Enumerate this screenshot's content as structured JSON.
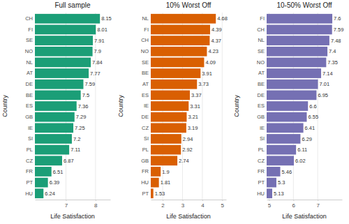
{
  "chart_data": [
    {
      "type": "bar",
      "orientation": "horizontal",
      "title": "Full sample",
      "x_label": "Life Satisfaction",
      "y_label": "Country",
      "categories": [
        "CH",
        "FI",
        "SE",
        "NO",
        "NL",
        "AT",
        "DE",
        "BE",
        "ES",
        "GB",
        "IE",
        "SI",
        "PL",
        "CZ",
        "FR",
        "PT",
        "HU"
      ],
      "values": [
        8.15,
        8.01,
        7.91,
        7.9,
        7.84,
        7.77,
        7.59,
        7.5,
        7.36,
        7.29,
        7.25,
        7.2,
        7.11,
        6.87,
        6.51,
        6.39,
        6.24
      ],
      "color": "#1b9e77",
      "xlim": [
        5.95,
        8.5
      ],
      "xticks": [
        7,
        8
      ],
      "grid": true,
      "data_labels": true
    },
    {
      "type": "bar",
      "orientation": "horizontal",
      "title": "10% Worst Off",
      "x_label": "Life Satisfaction",
      "y_label": "Country",
      "categories": [
        "NL",
        "FI",
        "CH",
        "NO",
        "SE",
        "BE",
        "AT",
        "ES",
        "IE",
        "DE",
        "CZ",
        "SI",
        "PL",
        "GB",
        "FR",
        "HU",
        "PT"
      ],
      "values": [
        4.68,
        4.39,
        4.37,
        4.23,
        4.09,
        3.91,
        3.73,
        3.37,
        3.31,
        3.21,
        3.19,
        2.94,
        2.92,
        2.74,
        1.9,
        1.81,
        1.53
      ],
      "color": "#d95f02",
      "xlim": [
        1.4,
        5.2
      ],
      "xticks": [
        2,
        3,
        4,
        5
      ],
      "grid": true,
      "data_labels": true
    },
    {
      "type": "bar",
      "orientation": "horizontal",
      "title": "10-50% Worst Off",
      "x_label": "Life Satisfaction",
      "y_label": "Country",
      "categories": [
        "FI",
        "CH",
        "NL",
        "SE",
        "NO",
        "AT",
        "BE",
        "DE",
        "ES",
        "GB",
        "IE",
        "SI",
        "PL",
        "CZ",
        "FR",
        "PT",
        "HU"
      ],
      "values": [
        7.6,
        7.59,
        7.48,
        7.4,
        7.35,
        7.14,
        7.01,
        6.95,
        6.6,
        6.55,
        6.41,
        6.29,
        6.11,
        6.02,
        5.46,
        5.3,
        5.13
      ],
      "color": "#7570b3",
      "xlim": [
        4.9,
        8.0
      ],
      "xticks": [
        5,
        6,
        7
      ],
      "grid": true,
      "data_labels": true
    }
  ]
}
